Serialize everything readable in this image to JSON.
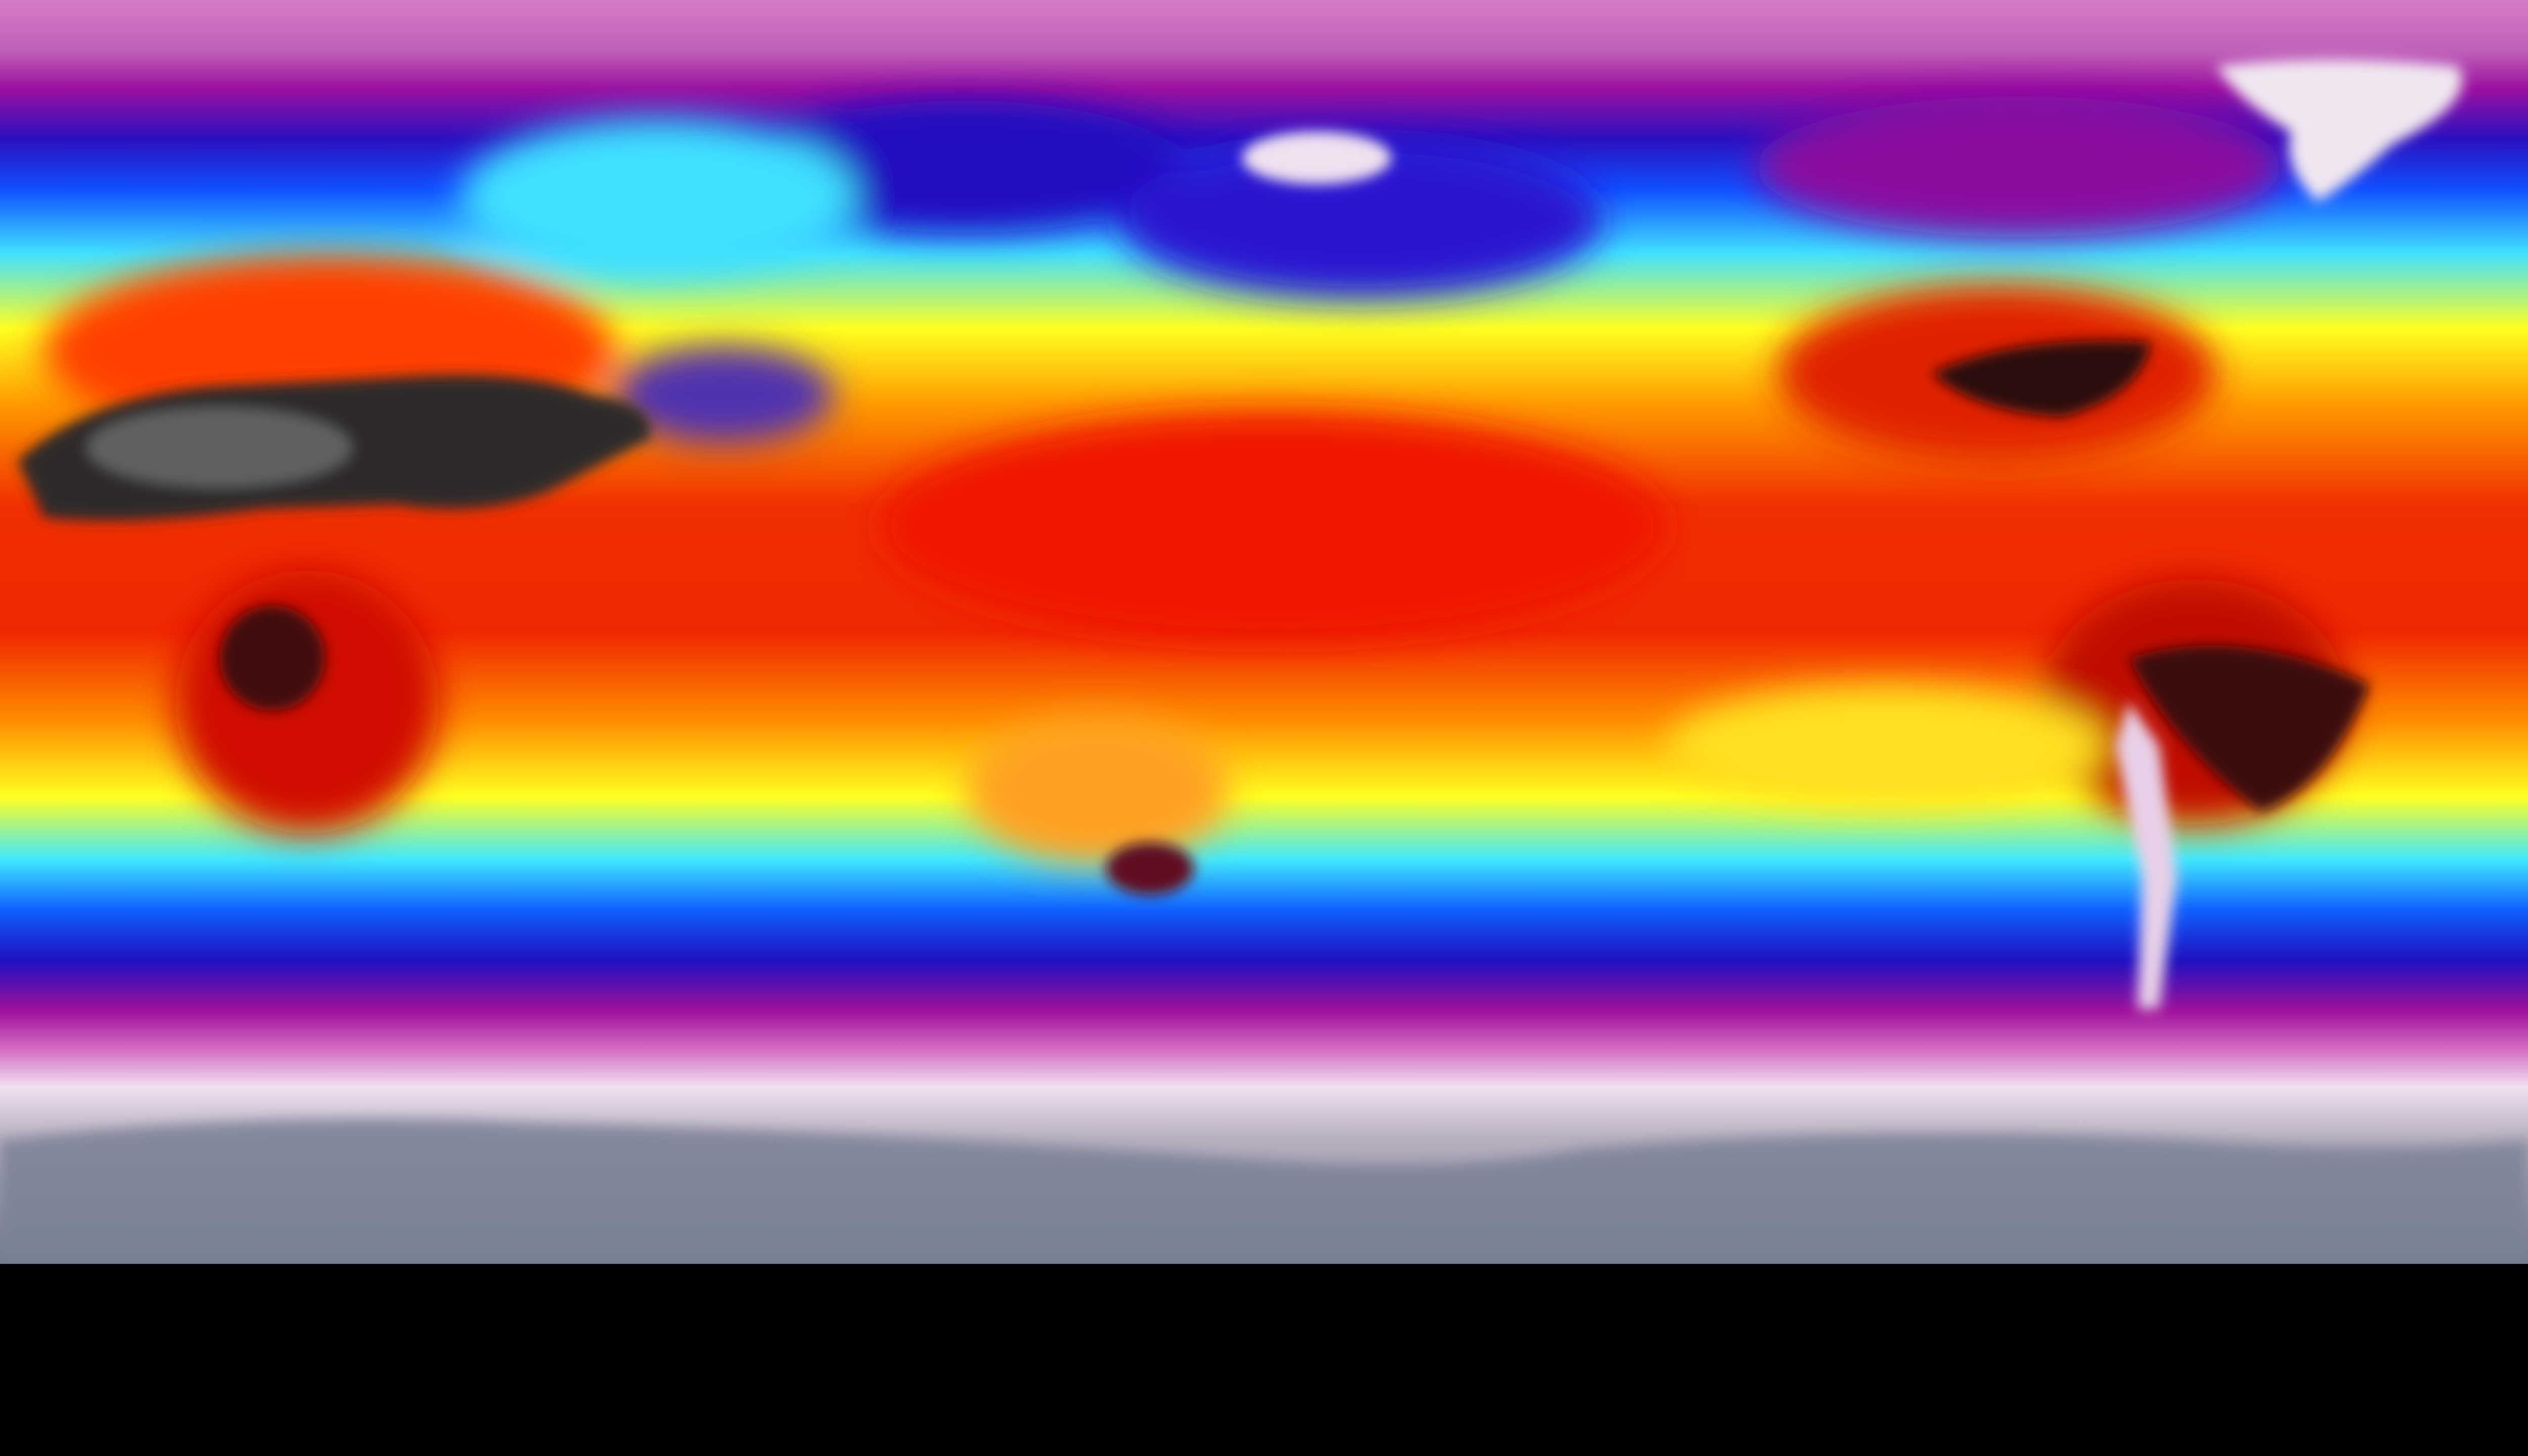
{
  "map": {
    "projection": "equirectangular",
    "field": "temperature",
    "colormap": {
      "stops": [
        "#d36cc4",
        "#a0109a",
        "#2010c0",
        "#1060ff",
        "#40e8ff",
        "#ffff20",
        "#ffa000",
        "#ff2000",
        "#c00000",
        "#202020",
        "#f0e0f0",
        "#7a8296"
      ]
    },
    "colors": {
      "north_polar": "#d77cc8",
      "polar_purple": "#9b10a0",
      "cold_blue": "#1a10c8",
      "cool_cyan": "#40e0ff",
      "warm_yellow": "#ffff20",
      "hot_orange": "#ff9000",
      "tropical_red": "#f02000",
      "desert_dark": "#303030",
      "ice_white": "#f0e6f0",
      "antarctic_gray": "#7a8296"
    }
  }
}
